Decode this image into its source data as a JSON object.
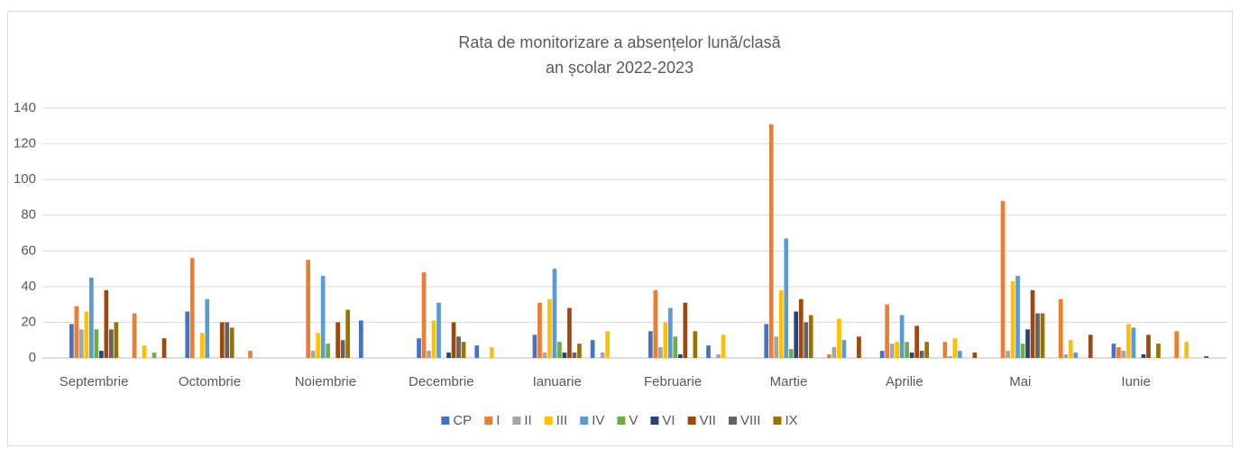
{
  "chart_data": {
    "type": "bar",
    "title": "Rata de monitorizare a absențelor lună/clasă",
    "subtitle": "an școlar 2022-2023",
    "categories": [
      "Septembrie",
      null,
      "Octombrie",
      null,
      "Noiembrie",
      null,
      "Decembrie",
      null,
      "Ianuarie",
      null,
      "Februarie",
      null,
      "Martie",
      null,
      "Aprilie",
      null,
      "Mai",
      null,
      "Iunie",
      null
    ],
    "series": [
      {
        "name": "CP",
        "color": "#4472c4",
        "values": [
          19,
          0,
          26,
          0,
          0,
          21,
          11,
          7,
          13,
          10,
          15,
          7,
          19,
          0,
          4,
          0,
          0,
          0,
          8,
          0
        ]
      },
      {
        "name": "I",
        "color": "#ed7d31",
        "values": [
          29,
          25,
          56,
          4,
          55,
          0,
          48,
          0,
          31,
          0,
          38,
          0,
          131,
          2,
          30,
          9,
          88,
          33,
          6,
          15
        ]
      },
      {
        "name": "II",
        "color": "#a5a5a5",
        "values": [
          16,
          0,
          0,
          0,
          4,
          0,
          4,
          0,
          3,
          3,
          6,
          2,
          12,
          6,
          8,
          1,
          4,
          2,
          4,
          0
        ]
      },
      {
        "name": "III",
        "color": "#ffc000",
        "values": [
          26,
          7,
          14,
          0,
          14,
          0,
          21,
          6,
          33,
          15,
          20,
          13,
          38,
          22,
          9,
          11,
          43,
          10,
          19,
          9
        ]
      },
      {
        "name": "IV",
        "color": "#5b9bd5",
        "values": [
          45,
          0,
          33,
          0,
          46,
          0,
          31,
          0,
          50,
          0,
          28,
          0,
          67,
          10,
          24,
          4,
          46,
          3,
          17,
          0
        ]
      },
      {
        "name": "V",
        "color": "#70ad47",
        "values": [
          16,
          3,
          0,
          0,
          8,
          0,
          0,
          0,
          9,
          0,
          12,
          0,
          5,
          0,
          9,
          0,
          8,
          0,
          0,
          0
        ]
      },
      {
        "name": "VI",
        "color": "#264478",
        "values": [
          4,
          0,
          0,
          0,
          0,
          0,
          3,
          0,
          3,
          0,
          2,
          0,
          26,
          0,
          3,
          0,
          16,
          0,
          2,
          0
        ]
      },
      {
        "name": "VII",
        "color": "#9e480e",
        "values": [
          38,
          11,
          20,
          0,
          20,
          0,
          20,
          0,
          28,
          0,
          31,
          0,
          33,
          12,
          18,
          3,
          38,
          13,
          13,
          1
        ]
      },
      {
        "name": "VIII",
        "color": "#636363",
        "values": [
          16,
          0,
          20,
          0,
          10,
          0,
          12,
          0,
          3,
          0,
          0,
          0,
          20,
          0,
          4,
          0,
          25,
          0,
          0,
          0
        ]
      },
      {
        "name": "IX",
        "color": "#997300",
        "values": [
          20,
          0,
          17,
          0,
          27,
          0,
          9,
          0,
          8,
          0,
          15,
          0,
          24,
          0,
          9,
          0,
          25,
          0,
          8,
          0
        ]
      }
    ],
    "ylim": [
      0,
      140
    ],
    "yticks": [
      0,
      20,
      40,
      60,
      80,
      100,
      120,
      140
    ],
    "grid": true,
    "legend": "bottom"
  }
}
